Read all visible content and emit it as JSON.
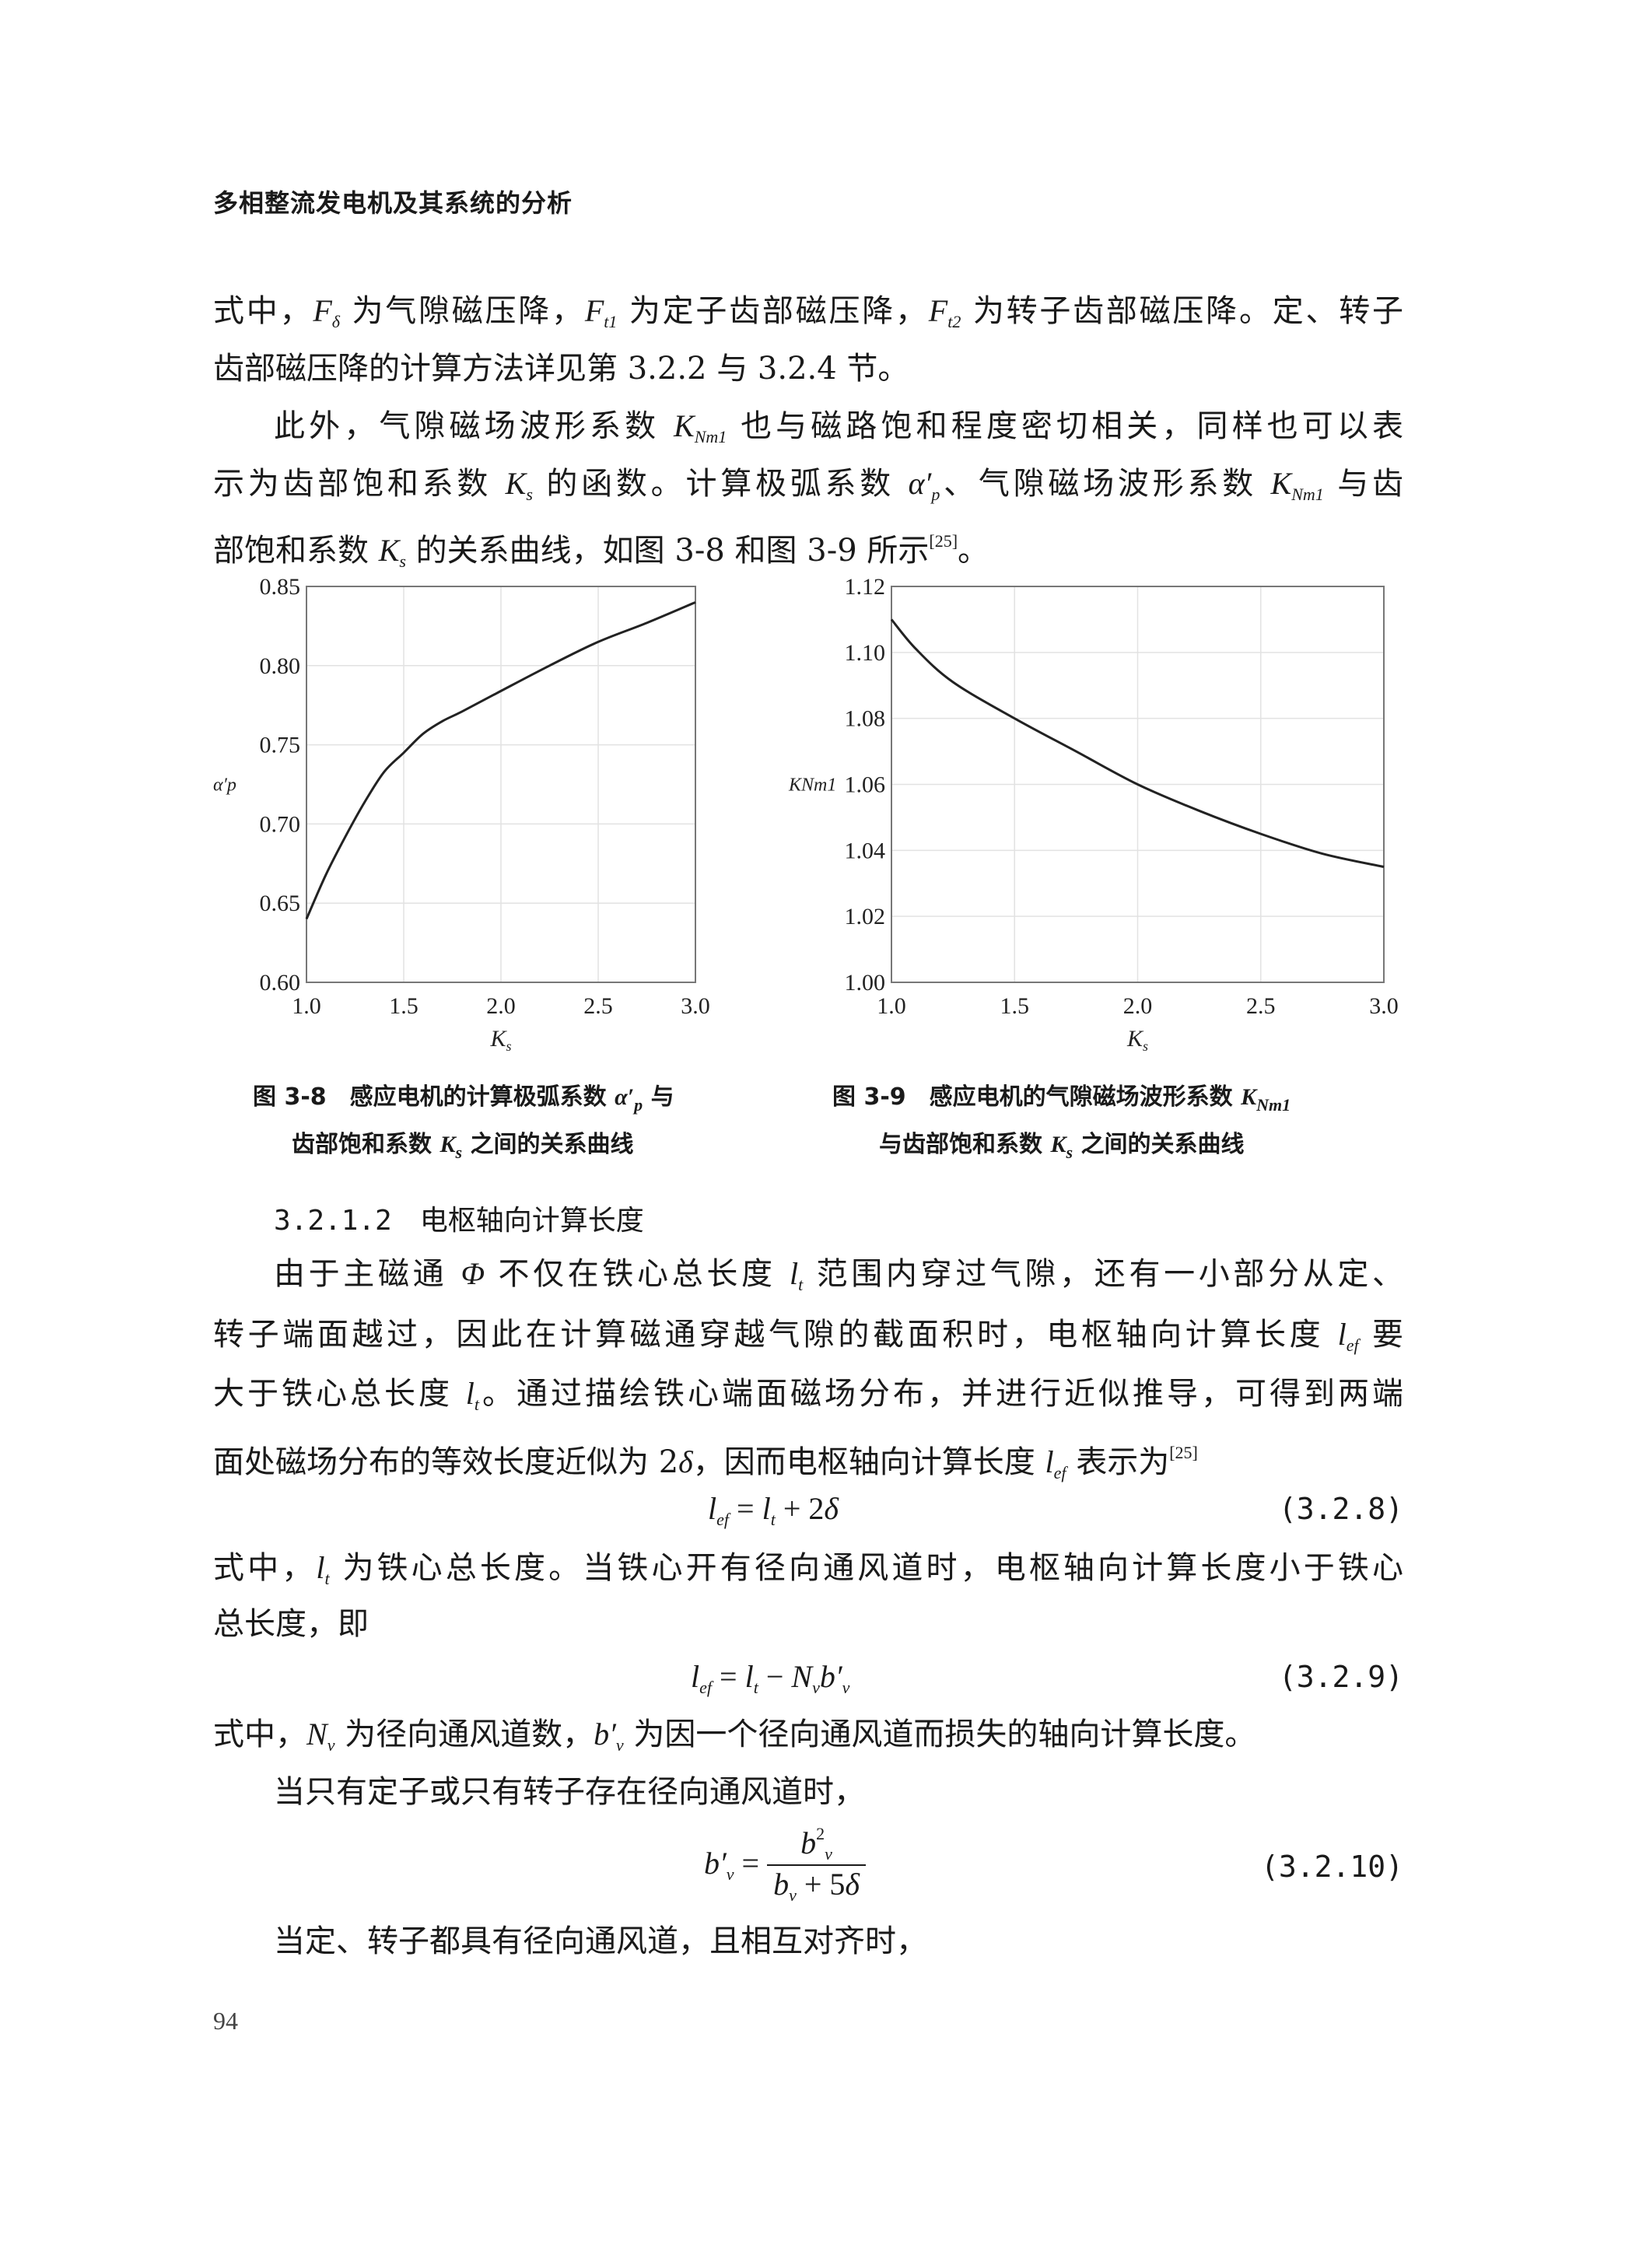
{
  "header": {
    "running_title": "多相整流发电机及其系统的分析"
  },
  "paragraph1": [
    [
      [
        "t",
        "式中，"
      ],
      [
        "m",
        "F"
      ],
      [
        "sub",
        "δ"
      ],
      [
        "t",
        " 为气隙磁压降，"
      ],
      [
        "m",
        "F"
      ],
      [
        "sub",
        "t1"
      ],
      [
        "t",
        " 为定子齿部磁压降，"
      ],
      [
        "m",
        "F"
      ],
      [
        "sub",
        "t2"
      ],
      [
        "t",
        " 为转子齿部磁压降。定、转子"
      ]
    ],
    [
      [
        "t",
        "齿部磁压降的计算方法详见第 3.2.2 与 3.2.4 节。"
      ]
    ]
  ],
  "paragraph2": [
    [
      [
        "t",
        "此外，气隙磁场波形系数 "
      ],
      [
        "m",
        "K"
      ],
      [
        "sub",
        "Nm1"
      ],
      [
        "t",
        " 也与磁路饱和程度密切相关，同样也可以表"
      ]
    ],
    [
      [
        "t",
        "示为齿部饱和系数 "
      ],
      [
        "m",
        "K"
      ],
      [
        "sub",
        "s"
      ],
      [
        "t",
        " 的函数。计算极弧系数 "
      ],
      [
        "m",
        "α′"
      ],
      [
        "sub",
        "p"
      ],
      [
        "t",
        "、气隙磁场波形系数 "
      ],
      [
        "m",
        "K"
      ],
      [
        "sub",
        "Nm1"
      ],
      [
        "t",
        " 与齿"
      ]
    ],
    [
      [
        "t",
        "部饱和系数 "
      ],
      [
        "m",
        "K"
      ],
      [
        "sub",
        "s"
      ],
      [
        "t",
        " 的关系曲线，如图 3-8 和图 3-9 所示"
      ],
      [
        "sup",
        "[25]"
      ],
      [
        "t",
        "。"
      ]
    ]
  ],
  "captions": {
    "fig38_line1": [
      [
        "t",
        "图 3-8　感应电机的计算极弧系数 "
      ],
      [
        "m",
        "α′"
      ],
      [
        "sub",
        "p"
      ],
      [
        "t",
        " 与"
      ]
    ],
    "fig38_line2": [
      [
        "t",
        "齿部饱和系数 "
      ],
      [
        "m",
        "K"
      ],
      [
        "sub",
        "s"
      ],
      [
        "t",
        " 之间的关系曲线"
      ]
    ],
    "fig39_line1": [
      [
        "t",
        "图 3-9　感应电机的气隙磁场波形系数 "
      ],
      [
        "m",
        "K"
      ],
      [
        "sub",
        "Nm1"
      ]
    ],
    "fig39_line2": [
      [
        "t",
        "与齿部饱和系数 "
      ],
      [
        "m",
        "K"
      ],
      [
        "sub",
        "s"
      ],
      [
        "t",
        " 之间的关系曲线"
      ]
    ]
  },
  "section": {
    "number": "3.2.1.2",
    "title": "电枢轴向计算长度"
  },
  "paragraph3": [
    [
      [
        "t",
        "由于主磁通 "
      ],
      [
        "m",
        "Φ"
      ],
      [
        "t",
        " 不仅在铁心总长度 "
      ],
      [
        "m",
        "l"
      ],
      [
        "sub",
        "t"
      ],
      [
        "t",
        " 范围内穿过气隙，还有一小部分从定、"
      ]
    ],
    [
      [
        "t",
        "转子端面越过，因此在计算磁通穿越气隙的截面积时，电枢轴向计算长度 "
      ],
      [
        "m",
        "l"
      ],
      [
        "sub",
        "ef"
      ],
      [
        "t",
        " 要"
      ]
    ],
    [
      [
        "t",
        "大于铁心总长度 "
      ],
      [
        "m",
        "l"
      ],
      [
        "sub",
        "t"
      ],
      [
        "t",
        "。通过描绘铁心端面磁场分布，并进行近似推导，可得到两端"
      ]
    ],
    [
      [
        "t",
        "面处磁场分布的等效长度近似为 2"
      ],
      [
        "m",
        "δ"
      ],
      [
        "t",
        "，因而电枢轴向计算长度 "
      ],
      [
        "m",
        "l"
      ],
      [
        "sub",
        "ef"
      ],
      [
        "t",
        " 表示为"
      ],
      [
        "sup",
        "[25]"
      ]
    ]
  ],
  "eq328": {
    "expr": [
      [
        "m",
        "l"
      ],
      [
        "sub",
        "ef"
      ],
      [
        "t",
        " = "
      ],
      [
        "m",
        "l"
      ],
      [
        "sub",
        "t"
      ],
      [
        "t",
        " + 2"
      ],
      [
        "m",
        "δ"
      ]
    ],
    "number": "(3.2.8)"
  },
  "paragraph4": [
    [
      [
        "t",
        "式中，"
      ],
      [
        "m",
        "l"
      ],
      [
        "sub",
        "t"
      ],
      [
        "t",
        " 为铁心总长度。当铁心开有径向通风道时，电枢轴向计算长度小于铁心"
      ]
    ],
    [
      [
        "t",
        "总长度，即"
      ]
    ]
  ],
  "eq329": {
    "expr": [
      [
        "m",
        "l"
      ],
      [
        "sub",
        "ef"
      ],
      [
        "t",
        " = "
      ],
      [
        "m",
        "l"
      ],
      [
        "sub",
        "t"
      ],
      [
        "t",
        " − "
      ],
      [
        "m",
        "N"
      ],
      [
        "sub",
        "v"
      ],
      [
        "m",
        "b′"
      ],
      [
        "sub",
        "v"
      ]
    ],
    "number": "(3.2.9)"
  },
  "paragraph5": [
    [
      [
        "t",
        "式中，"
      ],
      [
        "m",
        "N"
      ],
      [
        "sub",
        "v"
      ],
      [
        "t",
        " 为径向通风道数，"
      ],
      [
        "m",
        "b′"
      ],
      [
        "sub",
        "v"
      ],
      [
        "t",
        " 为因一个径向通风道而损失的轴向计算长度。"
      ]
    ],
    [
      [
        "t",
        "当只有定子或只有转子存在径向通风道时，"
      ]
    ]
  ],
  "eq3210": {
    "lhs": [
      [
        "m",
        "b′"
      ],
      [
        "sub",
        "v"
      ],
      [
        "t",
        " = "
      ]
    ],
    "num": [
      [
        "m",
        "b"
      ],
      [
        "sup",
        "2"
      ],
      [
        "sub",
        "v"
      ]
    ],
    "den": [
      [
        "m",
        "b"
      ],
      [
        "sub",
        "v"
      ],
      [
        "t",
        " + 5"
      ],
      [
        "m",
        "δ"
      ]
    ],
    "number": "(3.2.10)"
  },
  "paragraph6": [
    [
      [
        "t",
        "当定、转子都具有径向通风道，且相互对齐时，"
      ]
    ]
  ],
  "page_number": "94",
  "chart_data": [
    {
      "type": "line",
      "xlabel": "Ks",
      "ylabel": "α′p",
      "xlim": [
        1.0,
        3.0
      ],
      "ylim": [
        0.6,
        0.85
      ],
      "grid": true,
      "xticks": [
        "1.0",
        "1.5",
        "2.0",
        "2.5",
        "3.0"
      ],
      "yticks": [
        "0.60",
        "0.65",
        "0.70",
        "0.75",
        "0.80",
        "0.85"
      ],
      "x": [
        1.0,
        1.1,
        1.2,
        1.3,
        1.4,
        1.5,
        1.6,
        1.7,
        1.8,
        2.0,
        2.25,
        2.5,
        2.75,
        3.0
      ],
      "y": [
        0.64,
        0.668,
        0.692,
        0.714,
        0.733,
        0.745,
        0.757,
        0.765,
        0.771,
        0.784,
        0.8,
        0.815,
        0.827,
        0.84
      ],
      "line_color": "#222222"
    },
    {
      "type": "line",
      "xlabel": "Ks",
      "ylabel": "KNm1",
      "xlim": [
        1.0,
        3.0
      ],
      "ylim": [
        1.0,
        1.12
      ],
      "grid": true,
      "xticks": [
        "1.0",
        "1.5",
        "2.0",
        "2.5",
        "3.0"
      ],
      "yticks": [
        "1.00",
        "1.02",
        "1.04",
        "1.06",
        "1.08",
        "1.10",
        "1.12"
      ],
      "x": [
        1.0,
        1.1,
        1.25,
        1.5,
        1.75,
        2.0,
        2.25,
        2.5,
        2.75,
        3.0
      ],
      "y": [
        1.11,
        1.101,
        1.091,
        1.08,
        1.07,
        1.06,
        1.052,
        1.045,
        1.039,
        1.035
      ],
      "line_color": "#222222"
    }
  ]
}
